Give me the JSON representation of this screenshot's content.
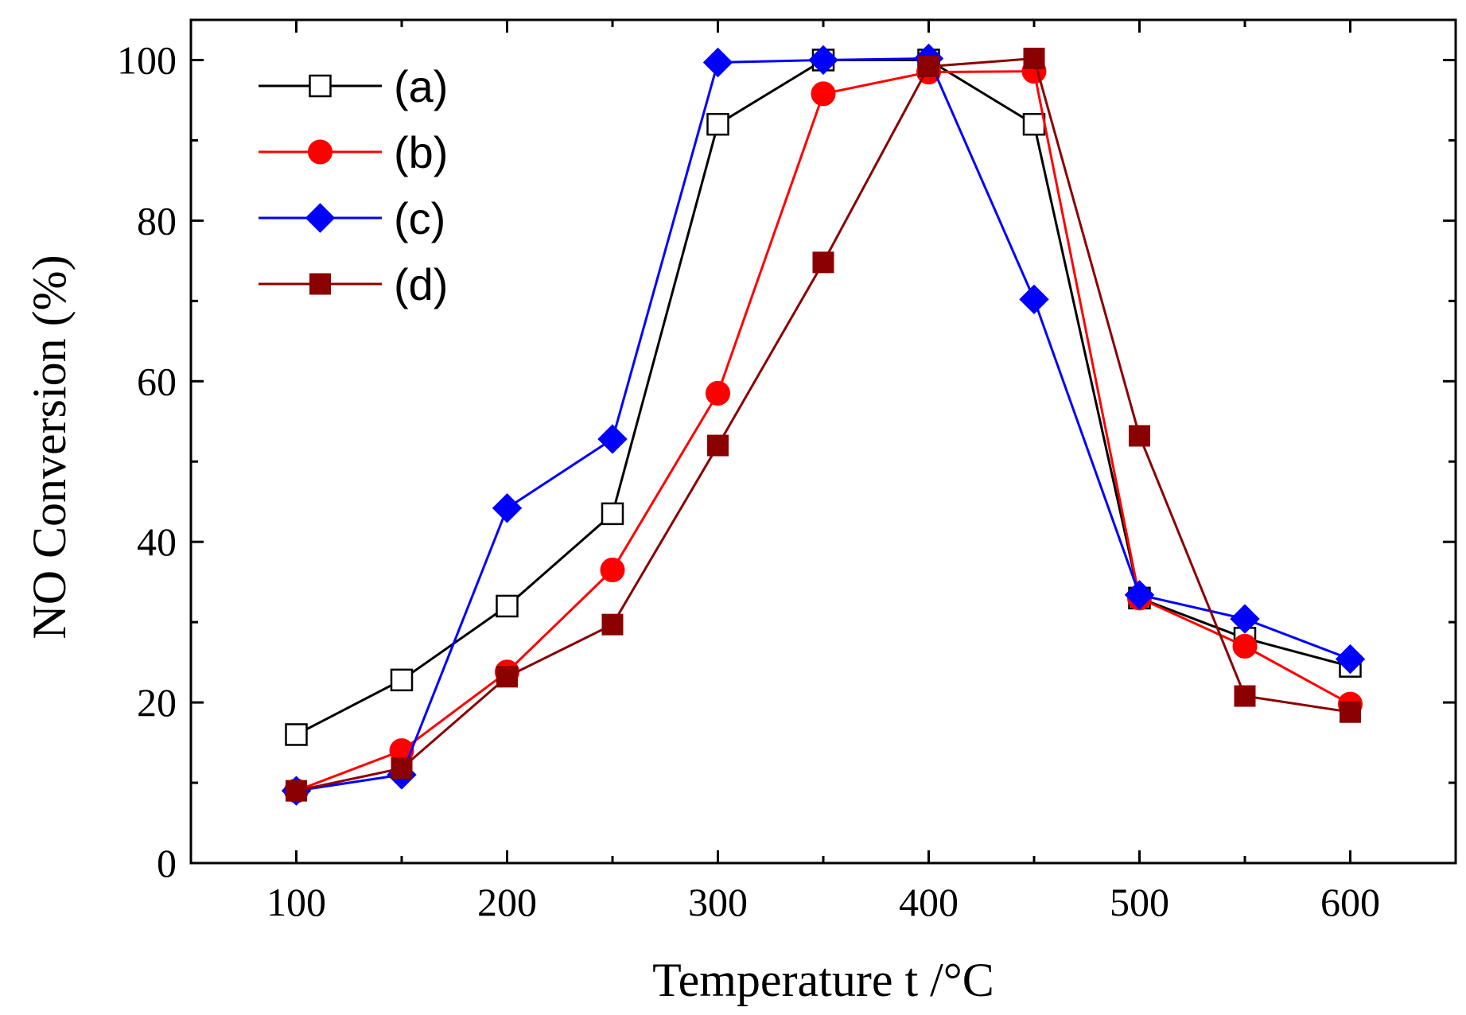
{
  "chart_data": {
    "type": "line",
    "title": "",
    "xlabel": "Temperature t /°C",
    "ylabel": "NO Conversion (%)",
    "xlim": [
      50,
      650
    ],
    "ylim": [
      0,
      105
    ],
    "xticks": [
      100,
      200,
      300,
      400,
      500,
      600
    ],
    "yticks": [
      0,
      20,
      40,
      60,
      80,
      100
    ],
    "x": [
      100,
      150,
      200,
      250,
      300,
      350,
      400,
      450,
      500,
      550,
      600
    ],
    "legend_position": "top-left",
    "series": [
      {
        "name": "(a)",
        "color": "#000000",
        "marker": "open-square",
        "values": [
          16,
          22.8,
          32,
          43.5,
          92,
          100,
          100,
          92,
          33,
          28,
          24.5
        ]
      },
      {
        "name": "(b)",
        "color": "#ff0000",
        "marker": "filled-circle",
        "values": [
          9,
          14,
          23.8,
          36.5,
          58.5,
          95.8,
          98.5,
          98.6,
          33,
          27,
          19.8
        ]
      },
      {
        "name": "(c)",
        "color": "#0000ff",
        "marker": "filled-diamond",
        "values": [
          9,
          11,
          44.2,
          52.8,
          99.7,
          100,
          100.2,
          70.2,
          33.4,
          30.4,
          25.4
        ]
      },
      {
        "name": "(d)",
        "color": "#8b0000",
        "marker": "filled-square",
        "values": [
          9,
          11.8,
          23.2,
          29.7,
          52,
          74.8,
          99.2,
          100.2,
          53.2,
          20.8,
          18.8
        ]
      }
    ]
  }
}
